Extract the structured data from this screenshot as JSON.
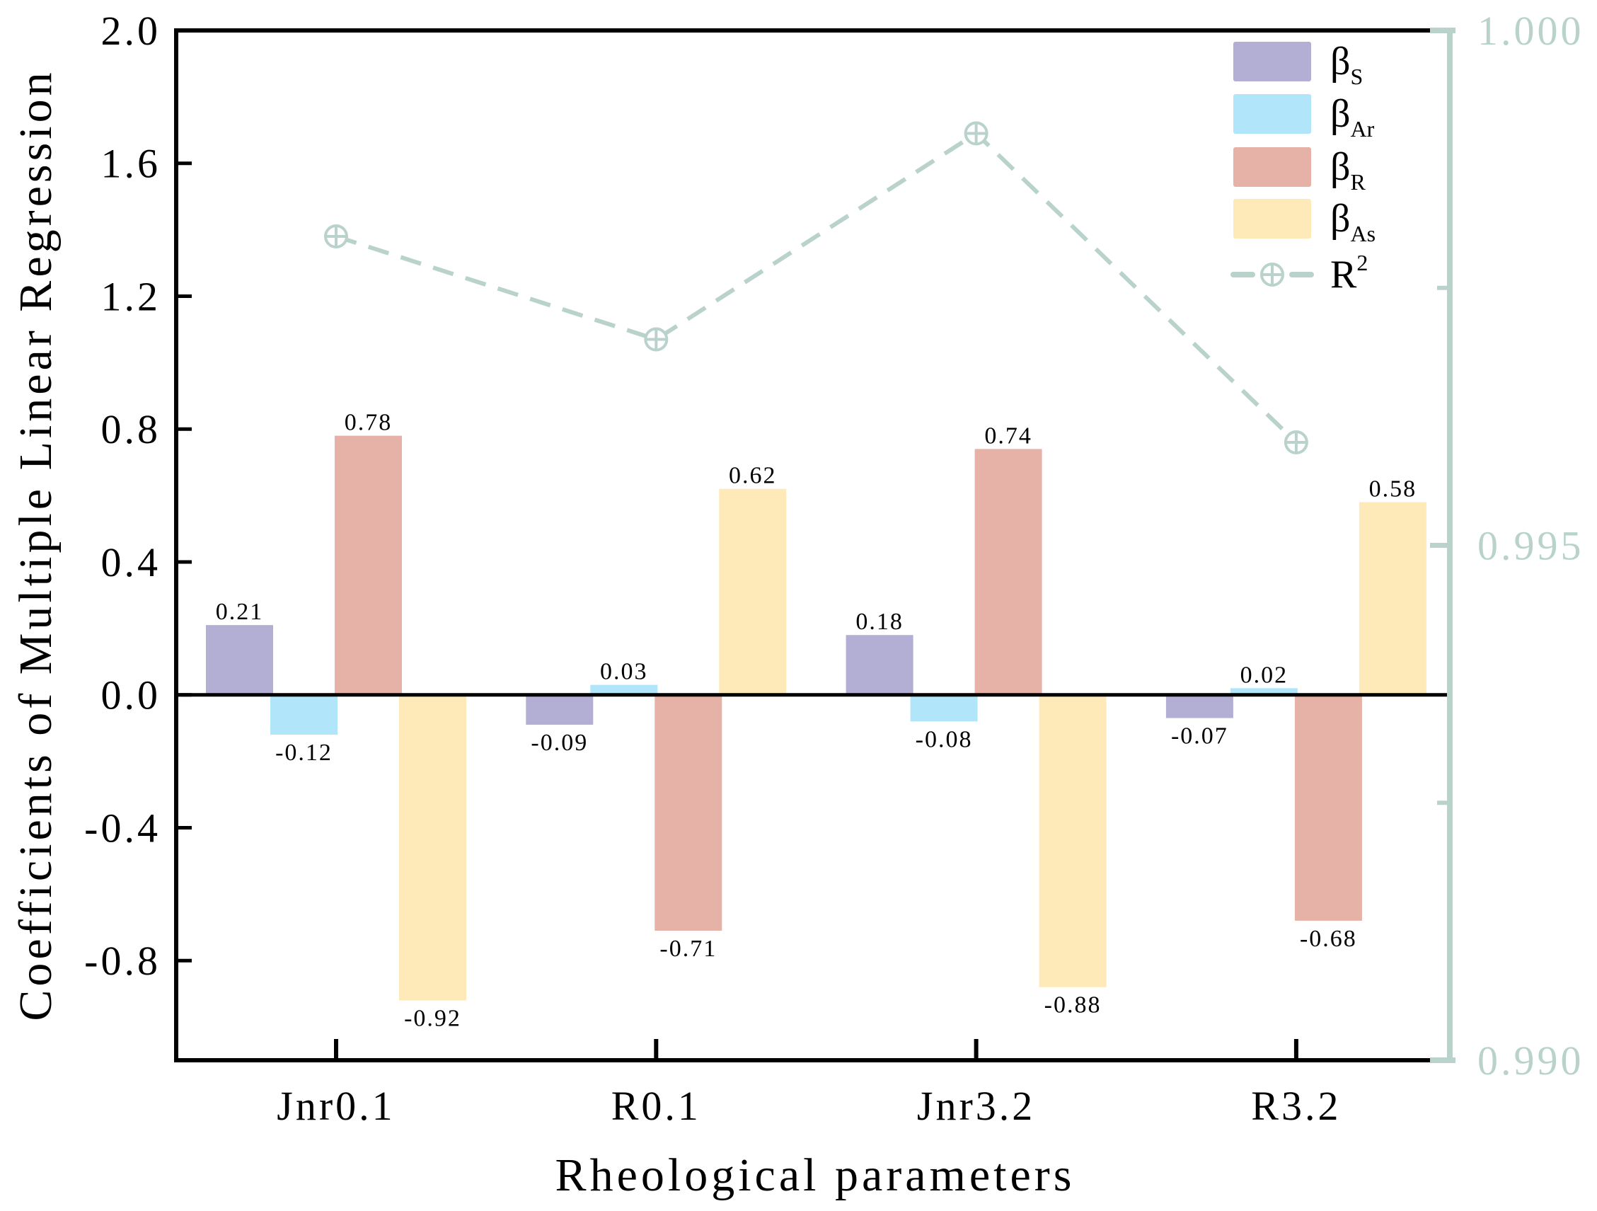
{
  "chart_data": {
    "type": "bar",
    "title": "",
    "xlabel": "Rheological parameters",
    "ylabel": "Coefficients of Multiple Linear Regression",
    "categories": [
      "Jnr0.1",
      "R0.1",
      "Jnr3.2",
      "R3.2"
    ],
    "ylim": [
      -1.1,
      2.0
    ],
    "yticks": [
      -0.8,
      -0.4,
      0.0,
      0.4,
      0.8,
      1.2,
      1.6,
      2.0
    ],
    "ytick_labels": [
      "-0.8",
      "-0.4",
      "0.0",
      "0.4",
      "0.8",
      "1.2",
      "1.6",
      "2.0"
    ],
    "series": [
      {
        "symbol": "β",
        "subscript": "S",
        "color": "#b3aed4",
        "values": [
          0.21,
          -0.09,
          0.18,
          -0.07
        ],
        "labels": [
          "0.21",
          "-0.09",
          "0.18",
          "-0.07"
        ]
      },
      {
        "symbol": "β",
        "subscript": "Ar",
        "color": "#b1e5f9",
        "values": [
          -0.12,
          0.03,
          -0.08,
          0.02
        ],
        "labels": [
          "-0.12",
          "0.03",
          "-0.08",
          "0.02"
        ]
      },
      {
        "symbol": "β",
        "subscript": "R",
        "color": "#e6b1a6",
        "values": [
          0.78,
          -0.71,
          0.74,
          -0.68
        ],
        "labels": [
          "0.78",
          "-0.71",
          "0.74",
          "-0.68"
        ]
      },
      {
        "symbol": "β",
        "subscript": "As",
        "color": "#feeab8",
        "values": [
          -0.92,
          0.62,
          -0.88,
          0.58
        ],
        "labels": [
          "-0.92",
          "0.62",
          "-0.88",
          "0.58"
        ]
      }
    ],
    "secondary": {
      "type": "line",
      "symbol": "R",
      "superscript": "2",
      "color": "#b9d3cc",
      "style": "dashed",
      "marker": "circle-plus",
      "values": [
        0.998,
        0.997,
        0.999,
        0.996
      ],
      "ylim": [
        0.99,
        1.0
      ],
      "yticks": [
        0.99,
        0.995,
        1.0
      ],
      "ytick_labels": [
        "0.990",
        "0.995",
        "1.000"
      ],
      "minor_ticks": [
        0.9925,
        0.9975
      ]
    },
    "legend": "top-right",
    "grid": false
  }
}
